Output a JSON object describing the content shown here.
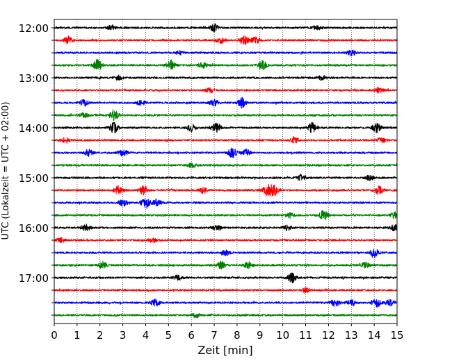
{
  "chart_data": {
    "type": "line",
    "title": "",
    "xlabel": "Zeit  [min]",
    "ylabel": "UTC (Lokalzeit = UTC + 02:00)",
    "xlim": [
      0,
      15
    ],
    "x_ticks": [
      "0",
      "1",
      "2",
      "3",
      "4",
      "5",
      "6",
      "7",
      "8",
      "9",
      "10",
      "11",
      "12",
      "13",
      "14",
      "15"
    ],
    "y_tick_labels": [
      "12:00",
      "13:00",
      "14:00",
      "15:00",
      "16:00",
      "17:00"
    ],
    "grid": "vertical dotted",
    "series_colors": [
      "#000000",
      "#ff0000",
      "#0000ff",
      "#008000"
    ],
    "traces": [
      {
        "start_utc": "12:00",
        "color": "#000000",
        "events": [
          [
            7.0,
            2.0
          ],
          [
            2.5,
            1.2
          ],
          [
            11.5,
            1.2
          ]
        ]
      },
      {
        "start_utc": "12:15",
        "color": "#ff0000",
        "events": [
          [
            0.6,
            1.8
          ],
          [
            7.3,
            1.8
          ],
          [
            8.3,
            2.6
          ],
          [
            8.8,
            1.8
          ]
        ]
      },
      {
        "start_utc": "12:30",
        "color": "#0000ff",
        "events": [
          [
            13.0,
            1.5
          ],
          [
            5.5,
            1.1
          ]
        ]
      },
      {
        "start_utc": "12:45",
        "color": "#008000",
        "events": [
          [
            1.9,
            2.8
          ],
          [
            5.1,
            2.6
          ],
          [
            9.1,
            2.4
          ],
          [
            6.5,
            1.4
          ]
        ]
      },
      {
        "start_utc": "13:00",
        "color": "#000000",
        "events": [
          [
            2.8,
            1.3
          ],
          [
            11.7,
            1.2
          ]
        ]
      },
      {
        "start_utc": "13:15",
        "color": "#ff0000",
        "events": [
          [
            6.8,
            1.4
          ],
          [
            14.2,
            1.4
          ]
        ]
      },
      {
        "start_utc": "13:30",
        "color": "#0000ff",
        "events": [
          [
            1.3,
            1.8
          ],
          [
            7.0,
            1.8
          ],
          [
            8.2,
            2.6
          ],
          [
            3.8,
            1.3
          ]
        ]
      },
      {
        "start_utc": "13:45",
        "color": "#008000",
        "events": [
          [
            2.6,
            2.8
          ],
          [
            1.3,
            1.2
          ]
        ]
      },
      {
        "start_utc": "14:00",
        "color": "#000000",
        "events": [
          [
            2.6,
            2.8
          ],
          [
            6.0,
            1.8
          ],
          [
            7.1,
            2.6
          ],
          [
            11.3,
            2.8
          ],
          [
            14.1,
            2.6
          ]
        ]
      },
      {
        "start_utc": "14:15",
        "color": "#ff0000",
        "events": [
          [
            0.5,
            1.4
          ],
          [
            10.5,
            1.3
          ],
          [
            14.3,
            1.5
          ]
        ]
      },
      {
        "start_utc": "14:30",
        "color": "#0000ff",
        "events": [
          [
            1.5,
            1.8
          ],
          [
            3.0,
            1.8
          ],
          [
            7.8,
            2.6
          ],
          [
            8.4,
            1.6
          ]
        ]
      },
      {
        "start_utc": "14:45",
        "color": "#008000",
        "events": [
          [
            6.0,
            1.3
          ]
        ]
      },
      {
        "start_utc": "15:00",
        "color": "#000000",
        "events": [
          [
            10.8,
            1.5
          ],
          [
            13.8,
            1.3
          ]
        ]
      },
      {
        "start_utc": "15:15",
        "color": "#ff0000",
        "events": [
          [
            2.8,
            2.2
          ],
          [
            3.9,
            2.4
          ],
          [
            6.5,
            1.6
          ],
          [
            9.3,
            2.8
          ],
          [
            9.6,
            2.8
          ],
          [
            14.2,
            2.2
          ]
        ]
      },
      {
        "start_utc": "15:30",
        "color": "#0000ff",
        "events": [
          [
            3.0,
            1.8
          ],
          [
            4.0,
            2.8
          ],
          [
            4.5,
            1.8
          ]
        ]
      },
      {
        "start_utc": "15:45",
        "color": "#008000",
        "events": [
          [
            11.8,
            2.6
          ],
          [
            14.9,
            1.8
          ],
          [
            10.3,
            1.2
          ]
        ]
      },
      {
        "start_utc": "16:00",
        "color": "#000000",
        "events": [
          [
            1.4,
            1.6
          ],
          [
            7.1,
            1.5
          ],
          [
            10.2,
            1.4
          ],
          [
            14.9,
            1.5
          ]
        ]
      },
      {
        "start_utc": "16:15",
        "color": "#ff0000",
        "events": [
          [
            4.3,
            1.3
          ],
          [
            0.3,
            1.2
          ]
        ]
      },
      {
        "start_utc": "16:30",
        "color": "#0000ff",
        "events": [
          [
            7.5,
            1.4
          ],
          [
            14.0,
            2.4
          ]
        ]
      },
      {
        "start_utc": "16:45",
        "color": "#008000",
        "events": [
          [
            2.1,
            1.8
          ],
          [
            7.3,
            1.8
          ],
          [
            8.5,
            1.7
          ],
          [
            13.6,
            1.6
          ]
        ]
      },
      {
        "start_utc": "17:00",
        "color": "#000000",
        "events": [
          [
            10.4,
            2.6
          ],
          [
            5.4,
            1.2
          ]
        ]
      },
      {
        "start_utc": "17:15",
        "color": "#ff0000",
        "events": [
          [
            11.0,
            1.2
          ]
        ]
      },
      {
        "start_utc": "17:30",
        "color": "#0000ff",
        "events": [
          [
            4.4,
            2.4
          ],
          [
            12.3,
            2.0
          ],
          [
            13.0,
            1.8
          ],
          [
            14.1,
            2.2
          ],
          [
            14.7,
            1.6
          ]
        ]
      },
      {
        "start_utc": "17:45",
        "color": "#008000",
        "events": [
          [
            6.2,
            1.1
          ]
        ]
      }
    ]
  }
}
